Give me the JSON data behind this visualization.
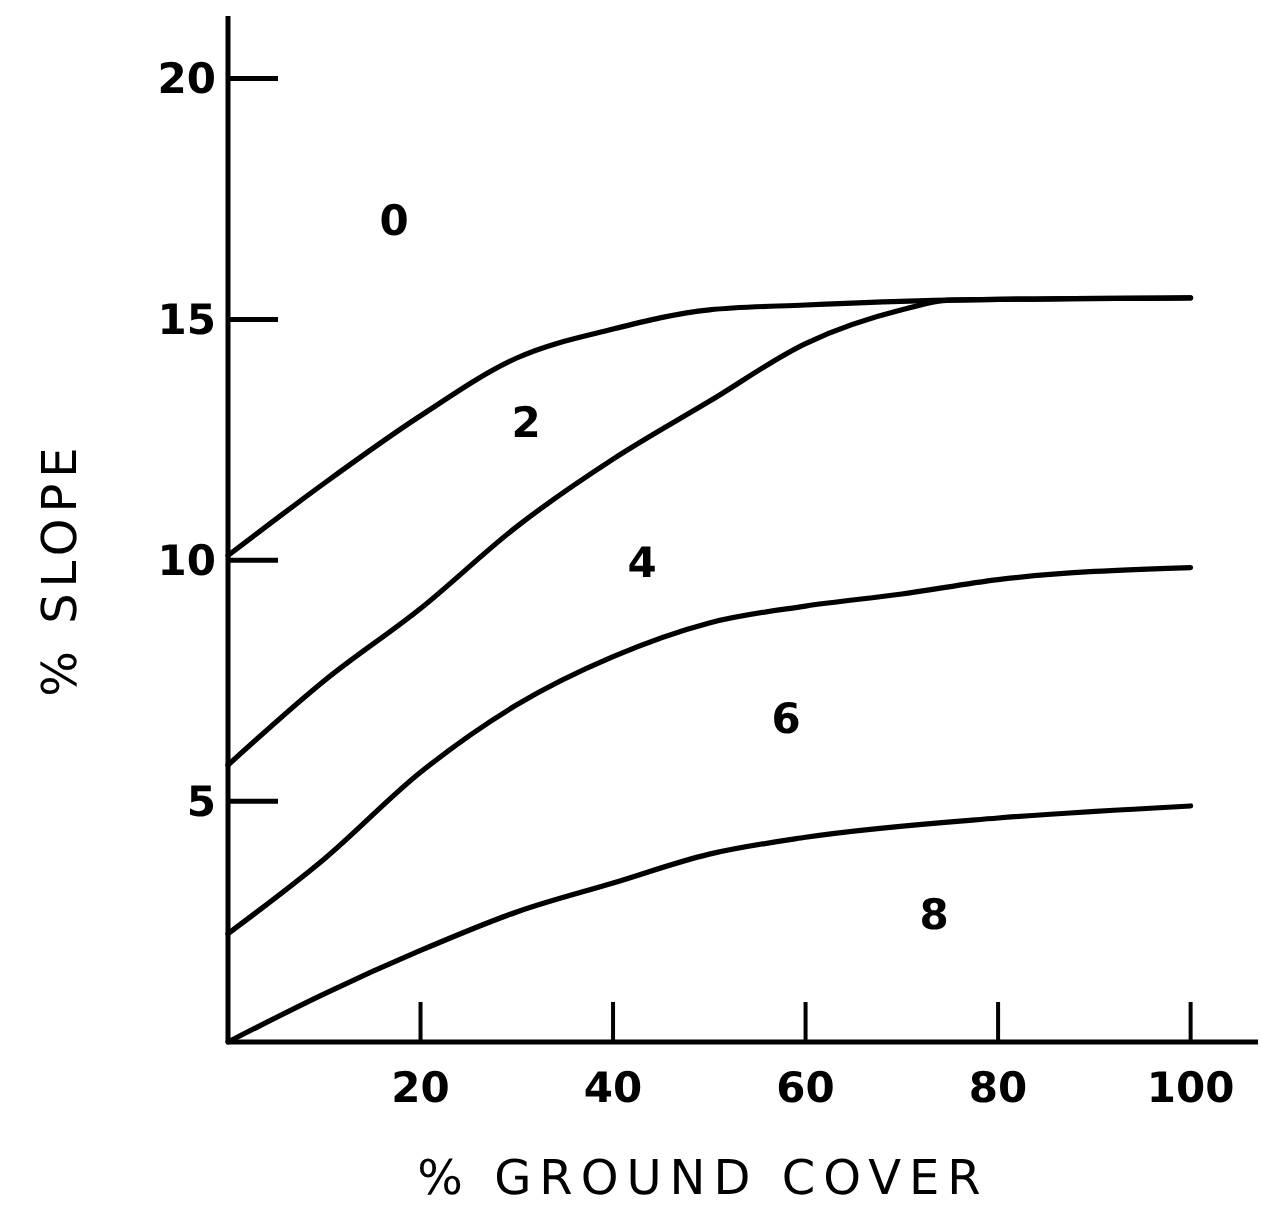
{
  "chart_data": {
    "type": "line",
    "xlabel": "% GROUND COVER",
    "ylabel": "% SLOPE",
    "xlim": [
      0,
      107
    ],
    "ylim": [
      0,
      21.3
    ],
    "xticks": [
      20,
      40,
      60,
      80,
      100
    ],
    "yticks": [
      5,
      10,
      15,
      20
    ],
    "grid": false,
    "marker": "none",
    "line_style": "solid",
    "series": [
      {
        "color": "#000000",
        "x": [
          0,
          10,
          20,
          30,
          40,
          50,
          60,
          75,
          100
        ],
        "values": [
          10.1,
          11.6,
          13.0,
          14.2,
          14.8,
          15.2,
          15.3,
          15.4,
          15.45
        ]
      },
      {
        "color": "#000000",
        "x": [
          0,
          10,
          20,
          30,
          40,
          50,
          60,
          70,
          75,
          100
        ],
        "values": [
          5.75,
          7.5,
          9.0,
          10.7,
          12.1,
          13.3,
          14.5,
          15.2,
          15.4,
          15.45
        ]
      },
      {
        "color": "#000000",
        "x": [
          0,
          10,
          20,
          30,
          40,
          50,
          60,
          70,
          80,
          100
        ],
        "values": [
          2.25,
          3.8,
          5.6,
          7.0,
          8.0,
          8.7,
          9.05,
          9.3,
          9.6,
          9.85
        ]
      },
      {
        "color": "#000000",
        "x": [
          0,
          10,
          20,
          30,
          40,
          50,
          60,
          80,
          100
        ],
        "values": [
          0,
          1.0,
          1.9,
          2.7,
          3.3,
          3.9,
          4.25,
          4.65,
          4.9
        ]
      }
    ],
    "annotations": [
      "0",
      "2",
      "4",
      "6",
      "8"
    ]
  }
}
